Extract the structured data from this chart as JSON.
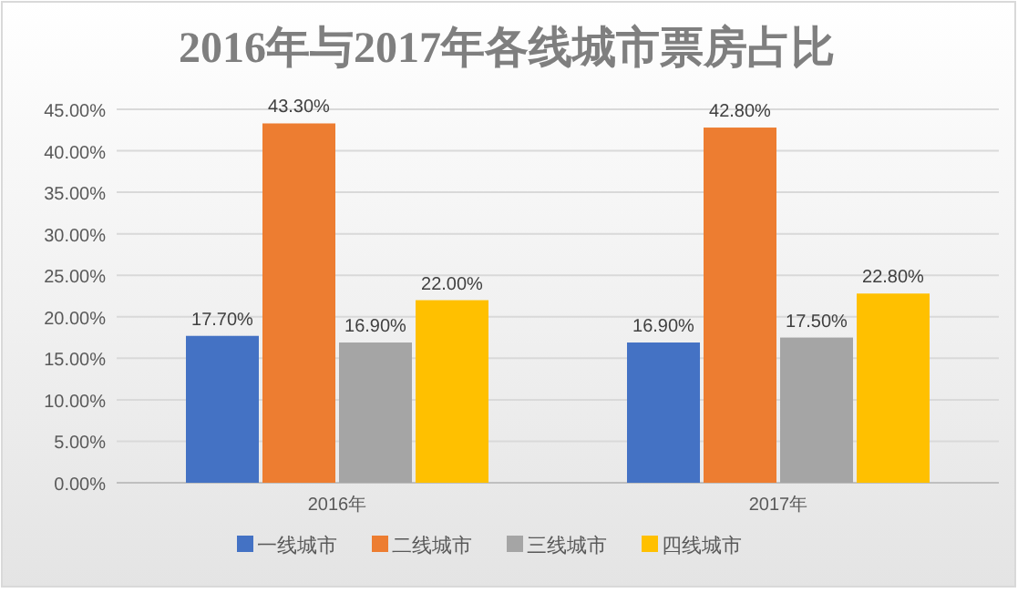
{
  "chart_data": {
    "type": "bar",
    "title": "2016年与2017年各线城市票房占比",
    "categories": [
      "2016年",
      "2017年"
    ],
    "series": [
      {
        "name": "一线城市",
        "color": "#4472c4",
        "values": [
          17.7,
          16.9
        ],
        "value_labels": [
          "17.70%",
          "16.90%"
        ]
      },
      {
        "name": "二线城市",
        "color": "#ed7d31",
        "values": [
          43.3,
          42.8
        ],
        "value_labels": [
          "43.30%",
          "42.80%"
        ]
      },
      {
        "name": "三线城市",
        "color": "#a5a5a5",
        "values": [
          16.9,
          17.5
        ],
        "value_labels": [
          "16.90%",
          "17.50%"
        ]
      },
      {
        "name": "四线城市",
        "color": "#ffc000",
        "values": [
          22.0,
          22.8
        ],
        "value_labels": [
          "22.00%",
          "22.80%"
        ]
      }
    ],
    "ylim": [
      0,
      45
    ],
    "yticks": [
      {
        "value": 0,
        "label": "0.00%"
      },
      {
        "value": 5,
        "label": "5.00%"
      },
      {
        "value": 10,
        "label": "10.00%"
      },
      {
        "value": 15,
        "label": "15.00%"
      },
      {
        "value": 20,
        "label": "20.00%"
      },
      {
        "value": 25,
        "label": "25.00%"
      },
      {
        "value": 30,
        "label": "30.00%"
      },
      {
        "value": 35,
        "label": "35.00%"
      },
      {
        "value": 40,
        "label": "40.00%"
      },
      {
        "value": 45,
        "label": "45.00%"
      }
    ],
    "grid": "y",
    "legend": "bottom"
  }
}
